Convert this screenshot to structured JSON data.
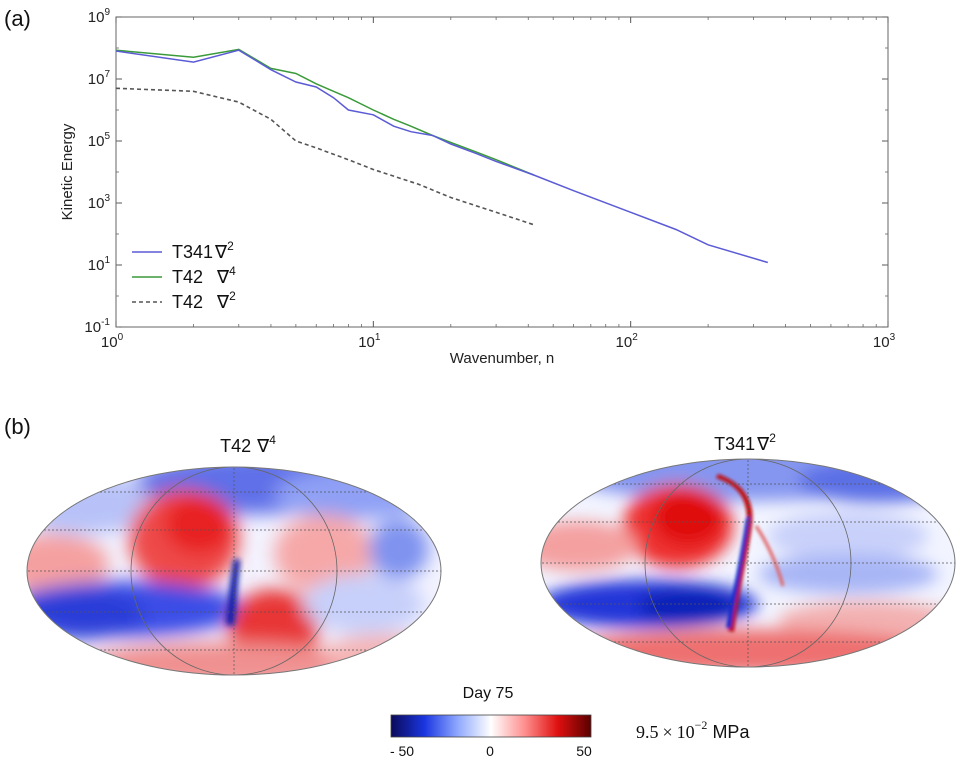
{
  "panel_labels": {
    "a": "(a)",
    "b": "(b)"
  },
  "chart_data": [
    {
      "type": "line",
      "panel": "(a)",
      "xscale": "log",
      "yscale": "log",
      "xlim": [
        1,
        1000
      ],
      "ylim": [
        0.1,
        1000000000
      ],
      "xlabel": "Wavenumber, n",
      "ylabel": "Kinetic Energy",
      "x_ticks": [
        {
          "value": 1,
          "base": "10",
          "exp": "0"
        },
        {
          "value": 10,
          "base": "10",
          "exp": "1"
        },
        {
          "value": 100,
          "base": "10",
          "exp": "2"
        },
        {
          "value": 1000,
          "base": "10",
          "exp": "3"
        }
      ],
      "y_ticks": [
        {
          "value": 0.1,
          "base": "10",
          "exp": "-1"
        },
        {
          "value": 10,
          "base": "10",
          "exp": "1"
        },
        {
          "value": 1000,
          "base": "10",
          "exp": "3"
        },
        {
          "value": 100000,
          "base": "10",
          "exp": "5"
        },
        {
          "value": 10000000,
          "base": "10",
          "exp": "7"
        },
        {
          "value": 1000000000,
          "base": "10",
          "exp": "9"
        }
      ],
      "legend_position": "lower-left",
      "series": [
        {
          "name": "T341",
          "operator": "∇",
          "power": "2",
          "color": "#5b5bd6",
          "dash": "solid",
          "x": [
            1,
            2,
            3,
            4,
            5,
            6,
            7,
            8,
            10,
            12,
            14,
            17,
            20,
            25,
            30,
            42,
            60,
            100,
            150,
            200,
            341
          ],
          "y": [
            80000000,
            35000000,
            85000000,
            20000000,
            8000000,
            5500000,
            2500000,
            1000000,
            700000,
            300000,
            200000,
            150000,
            80000,
            40000,
            22000,
            8000,
            2500,
            500,
            140,
            45,
            12
          ]
        },
        {
          "name": "T42",
          "operator": "∇",
          "power": "4",
          "color": "#3a9a3a",
          "dash": "solid",
          "x": [
            1,
            2,
            3,
            4,
            5,
            6,
            7,
            8,
            10,
            12,
            14,
            17,
            20,
            25,
            30,
            42
          ],
          "y": [
            85000000,
            50000000,
            90000000,
            22000000,
            15000000,
            7000000,
            4000000,
            2500000,
            1000000,
            500000,
            300000,
            150000,
            90000,
            45000,
            25000,
            8000
          ]
        },
        {
          "name": "T42",
          "operator": "∇",
          "power": "2",
          "color": "#555555",
          "dash": "dashed",
          "x": [
            1,
            2,
            3,
            4,
            5,
            6,
            8,
            10,
            15,
            20,
            30,
            42
          ],
          "y": [
            5000000,
            4000000,
            1800000,
            500000,
            100000,
            60000,
            25000,
            12000,
            4000,
            1500,
            500,
            200
          ]
        }
      ]
    },
    {
      "type": "heatmap",
      "panel": "(b)",
      "projection": "mollweide",
      "maps": [
        {
          "title": "T42",
          "operator": "∇",
          "power": "4"
        },
        {
          "title": "T341",
          "operator": "∇",
          "power": "2"
        }
      ],
      "caption": "Day 75",
      "colorbar": {
        "min": -50,
        "max": 50,
        "tick_labels": [
          "- 50",
          "0",
          "50"
        ],
        "colors": [
          "#0a0a5a",
          "#1a35e0",
          "#8ea8ff",
          "#ffffff",
          "#ff9090",
          "#e01010",
          "#5a0000"
        ],
        "scale_text": "9.5",
        "scale_times": "×",
        "scale_base": "10",
        "scale_exp": "−2",
        "scale_unit": "MPa"
      }
    }
  ]
}
